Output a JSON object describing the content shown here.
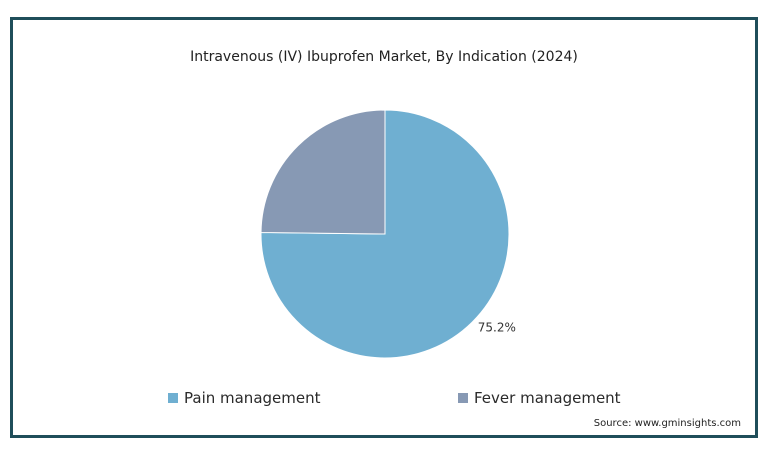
{
  "chart_data": {
    "type": "pie",
    "title": "Intravenous (IV) Ibuprofen Market, By Indication (2024)",
    "slices": [
      {
        "name": "Pain management",
        "value": 75.2,
        "label": "75.2%",
        "color": "#6fafd1"
      },
      {
        "name": "Fever management",
        "value": 24.8,
        "label": "",
        "color": "#8799b4"
      }
    ],
    "legend_position": "bottom",
    "source": "Source: www.gminsights.com"
  }
}
